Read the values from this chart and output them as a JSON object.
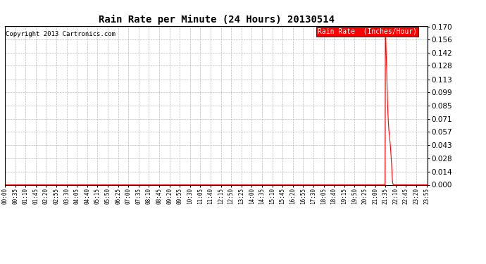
{
  "title": "Rain Rate per Minute (24 Hours) 20130514",
  "copyright": "Copyright 2013 Cartronics.com",
  "legend_label": "Rain Rate  (Inches/Hour)",
  "legend_bg": "#ff0000",
  "legend_fg": "#ffffff",
  "line_color": "#ff0000",
  "background_color": "#ffffff",
  "grid_color": "#bbbbbb",
  "ylim": [
    0.0,
    0.17
  ],
  "yticks": [
    0.0,
    0.014,
    0.028,
    0.043,
    0.057,
    0.071,
    0.085,
    0.099,
    0.113,
    0.128,
    0.142,
    0.156,
    0.17
  ],
  "total_minutes": 1440,
  "x_tick_interval": 35,
  "rain_data_minutes": [
    1290,
    1291,
    1292,
    1293,
    1294,
    1295,
    1296,
    1297,
    1298,
    1299,
    1300,
    1301,
    1302,
    1303,
    1304,
    1305,
    1306,
    1307,
    1308,
    1309,
    1310,
    1311,
    1312,
    1313,
    1314,
    1315,
    1316,
    1317,
    1318,
    1319,
    1320,
    1321,
    1322,
    1323,
    1324,
    1325
  ],
  "rain_data_values": [
    0.0,
    0.0,
    0.0,
    0.0,
    0.0,
    0.17,
    0.162,
    0.15,
    0.138,
    0.126,
    0.113,
    0.101,
    0.092,
    0.083,
    0.075,
    0.068,
    0.063,
    0.058,
    0.055,
    0.052,
    0.049,
    0.046,
    0.042,
    0.038,
    0.033,
    0.028,
    0.022,
    0.016,
    0.01,
    0.005,
    0.002,
    0.001,
    0.0,
    0.0,
    0.0,
    0.0
  ]
}
